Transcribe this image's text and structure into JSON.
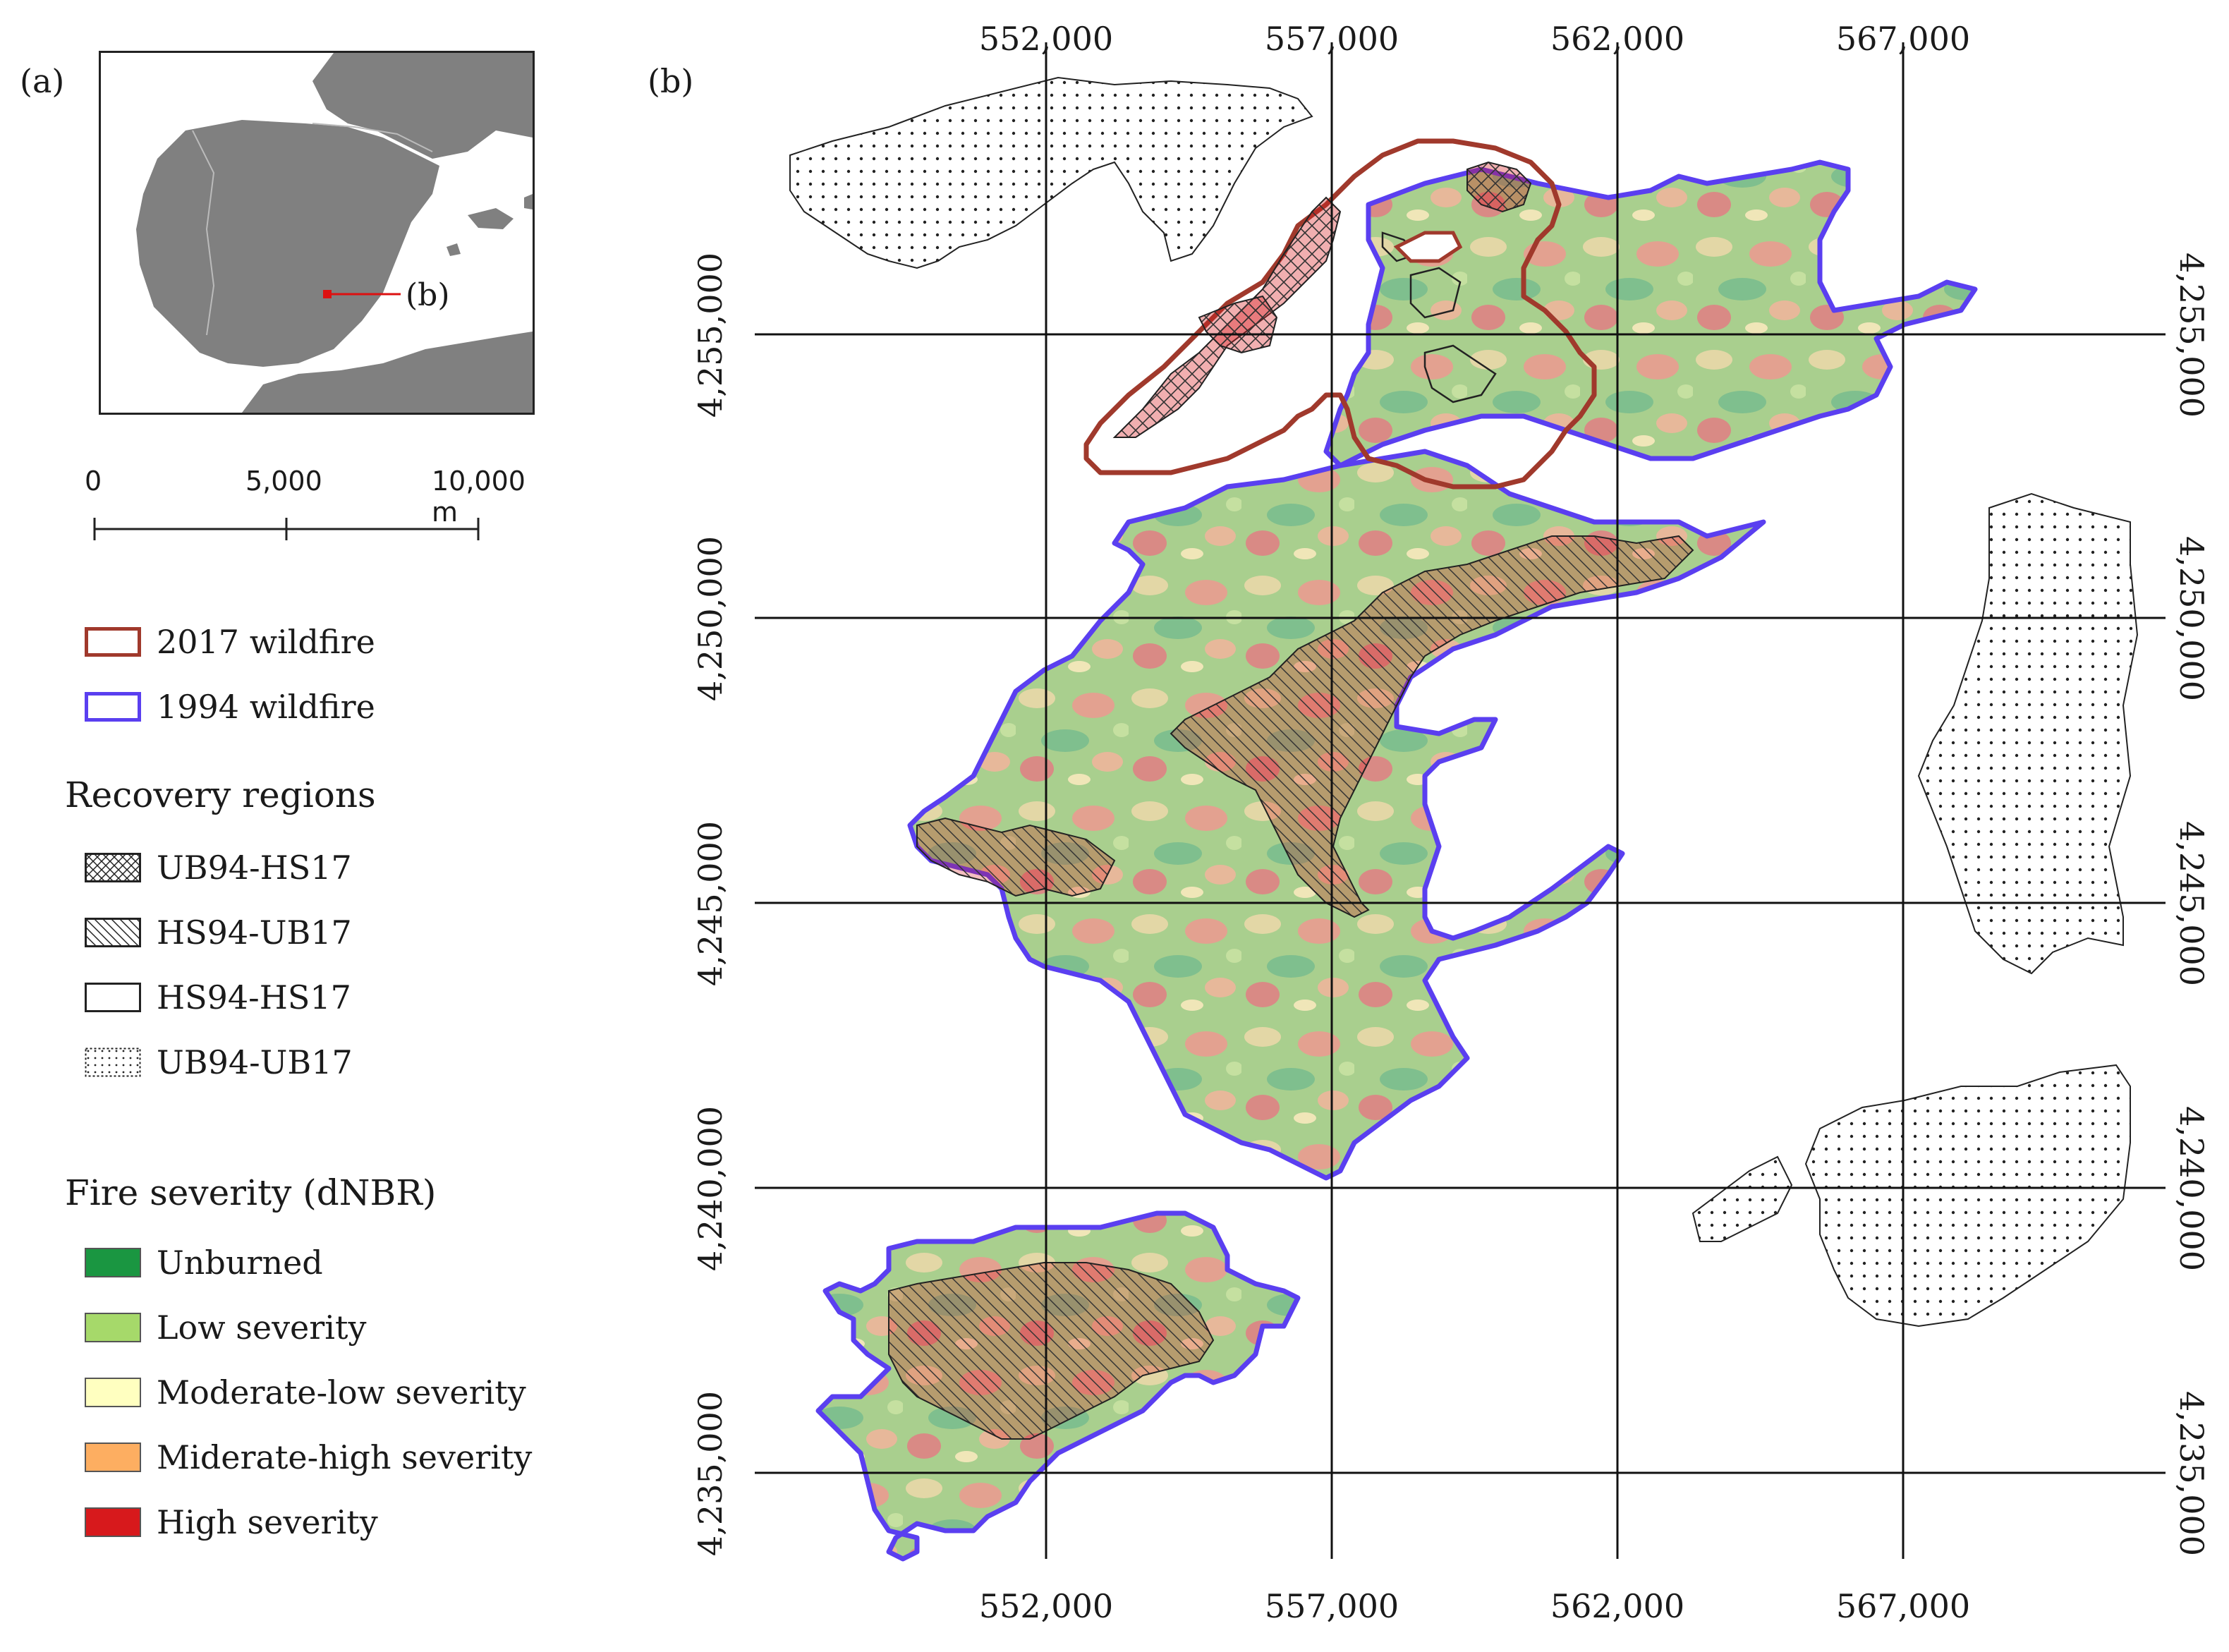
{
  "panel_a_label": "(a)",
  "panel_b_label": "(b)",
  "inset": {
    "callout_label": "(b)"
  },
  "scale_bar": {
    "ticks": [
      "0",
      "5,000",
      "10,000 m"
    ]
  },
  "legend": {
    "fires": [
      {
        "label": "2017 wildfire",
        "color": "#a0392c"
      },
      {
        "label": "1994 wildfire",
        "color": "#5a3ff0"
      }
    ],
    "recovery_heading": "Recovery regions",
    "recovery": [
      {
        "label": "UB94-HS17",
        "pattern": "crosshatch"
      },
      {
        "label": "HS94-UB17",
        "pattern": "diagonal"
      },
      {
        "label": "HS94-HS17",
        "pattern": "none"
      },
      {
        "label": "UB94-UB17",
        "pattern": "dots"
      }
    ],
    "severity_heading": "Fire severity (dNBR)",
    "severity": [
      {
        "label": "Unburned",
        "color": "#1a9641"
      },
      {
        "label": "Low severity",
        "color": "#a6d96a"
      },
      {
        "label": "Moderate-low severity",
        "color": "#ffffc0"
      },
      {
        "label": "Miderate-high severity",
        "color": "#fdae61"
      },
      {
        "label": "High severity",
        "color": "#d7191c"
      }
    ]
  },
  "map": {
    "x_ticks": [
      "552,000",
      "557,000",
      "562,000",
      "567,000"
    ],
    "y_ticks": [
      "4,255,000",
      "4,250,000",
      "4,245,000",
      "4,240,000",
      "4,235,000"
    ]
  }
}
